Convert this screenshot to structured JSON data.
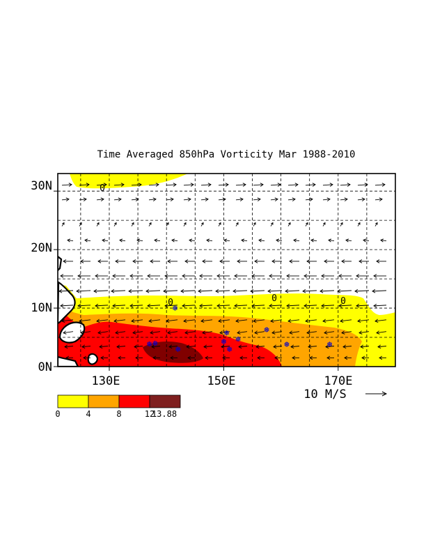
{
  "title": "Time Averaged 850hPa Vorticity  Mar 1988-2010",
  "map": {
    "lon_range": [
      121,
      180
    ],
    "lat_range": [
      0,
      33
    ],
    "y_ticks": [
      "30N",
      "20N",
      "10N",
      "0N"
    ],
    "x_ticks": [
      "130E",
      "150E",
      "170E"
    ],
    "contour_labels": [
      "0",
      "0",
      "0",
      "0"
    ],
    "reference_vector": "10 M/S",
    "colors": {
      "c0": "#ffff00",
      "c4": "#ffa500",
      "c8": "#ff0000",
      "c12": "#800000",
      "land": "#ffffff",
      "storm_symbol": "#0000cc"
    }
  },
  "colorbar": {
    "labels": [
      "0",
      "4",
      "8",
      "12",
      "13.88"
    ],
    "colors": [
      "#ffff00",
      "#ffa500",
      "#ff0000",
      "#7f1f1f"
    ]
  }
}
